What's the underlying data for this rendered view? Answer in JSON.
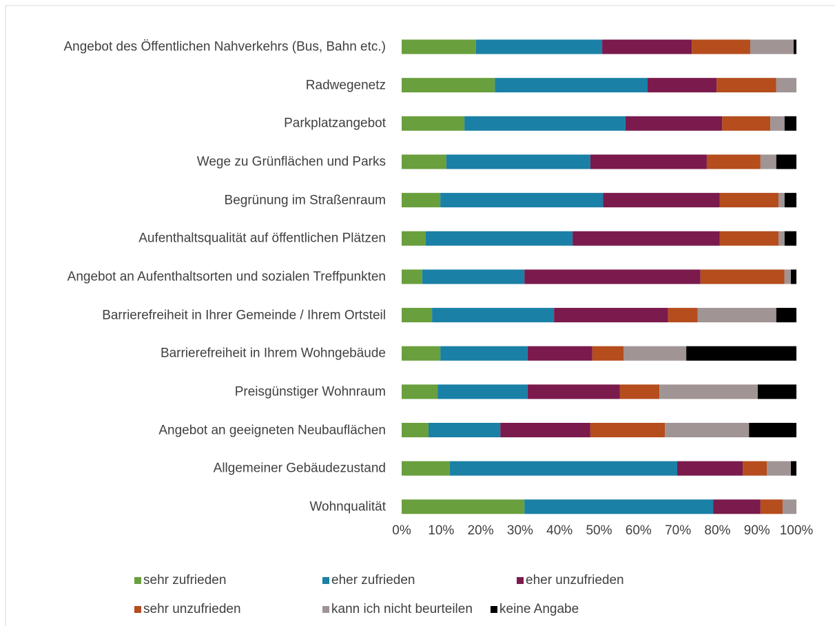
{
  "chart_data": {
    "type": "stacked-bar-horizontal",
    "categories": [
      "Angebot des Öffentlichen Nahverkehrs (Bus, Bahn etc.)",
      "Radwegenetz",
      "Parkplatzangebot",
      "Wege zu Grünflächen und Parks",
      "Begrünung im Straßenraum",
      "Aufenthaltsqualität auf öffentlichen Plätzen",
      "Angebot an Aufenthaltsorten und sozialen Treffpunkten",
      "Barrierefreiheit in Ihrer Gemeinde / Ihrem Ortsteil",
      "Barrierefreiheit in Ihrem Wohngebäude",
      "Preisgünstiger Wohnraum",
      "Angebot an geeigneten Neubauflächen",
      "Allgemeiner Gebäudezustand",
      "Wohnqualität"
    ],
    "series": [
      {
        "name": "sehr zufrieden",
        "color": "#6a9f3d",
        "values": [
          18.8,
          23.6,
          15.9,
          11.3,
          9.8,
          6.1,
          5.2,
          7.7,
          9.8,
          9.1,
          6.8,
          12.2,
          31.1
        ]
      },
      {
        "name": "eher zufrieden",
        "color": "#1a80a6",
        "values": [
          32.0,
          38.7,
          40.8,
          36.5,
          41.2,
          37.2,
          25.9,
          30.9,
          22.1,
          22.8,
          18.2,
          57.6,
          47.8
        ]
      },
      {
        "name": "eher unzufrieden",
        "color": "#7b1a4c",
        "values": [
          22.7,
          17.5,
          24.5,
          29.5,
          29.6,
          37.3,
          44.6,
          28.9,
          16.4,
          23.4,
          22.8,
          16.6,
          12.0
        ]
      },
      {
        "name": "sehr unzufrieden",
        "color": "#b54d1d",
        "values": [
          14.8,
          15.1,
          12.2,
          13.6,
          14.9,
          14.9,
          21.3,
          7.5,
          7.9,
          10.0,
          18.9,
          6.1,
          5.6
        ]
      },
      {
        "name": "kann ich nicht beurteilen",
        "color": "#a09494",
        "values": [
          11.0,
          5.1,
          3.6,
          4.0,
          1.5,
          1.5,
          1.6,
          19.9,
          15.9,
          24.9,
          21.3,
          6.1,
          3.5
        ]
      },
      {
        "name": "keine Angabe",
        "color": "#000000",
        "values": [
          0.7,
          0,
          3.0,
          5.1,
          3.0,
          3.0,
          1.4,
          5.1,
          27.9,
          9.8,
          12.0,
          1.4,
          0
        ]
      }
    ],
    "xlim": [
      0,
      100
    ],
    "xticks": [
      {
        "value": 0,
        "label": "0%"
      },
      {
        "value": 10,
        "label": "10%"
      },
      {
        "value": 20,
        "label": "20%"
      },
      {
        "value": 30,
        "label": "30%"
      },
      {
        "value": 40,
        "label": "40%"
      },
      {
        "value": 50,
        "label": "50%"
      },
      {
        "value": 60,
        "label": "60%"
      },
      {
        "value": 70,
        "label": "70%"
      },
      {
        "value": 80,
        "label": "80%"
      },
      {
        "value": 90,
        "label": "90%"
      },
      {
        "value": 100,
        "label": "100%"
      }
    ],
    "legend": "bottom"
  }
}
